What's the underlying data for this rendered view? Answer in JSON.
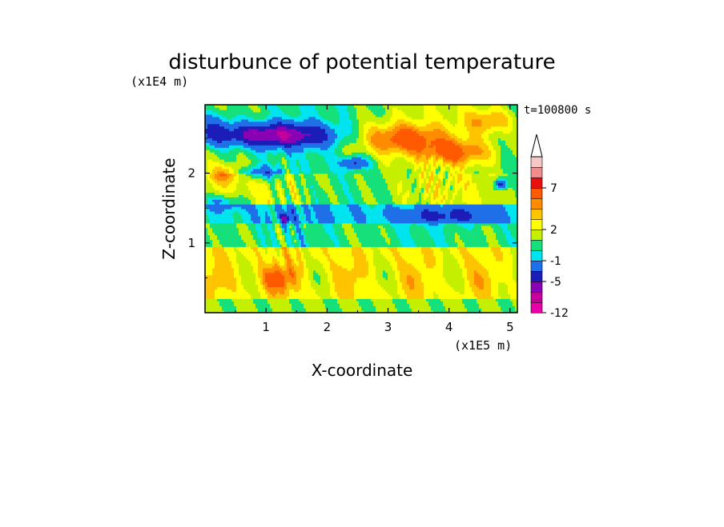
{
  "chart_data": {
    "type": "heatmap",
    "title": "disturbunce of potential temperature",
    "y_scale_label": "(x1E4 m)",
    "x_scale_label": "(x1E5 m)",
    "xlabel": "X-coordinate",
    "ylabel": "Z-coordinate",
    "time_label": "t=100800 s",
    "x_ticks": [
      "1",
      "2",
      "3",
      "4",
      "5"
    ],
    "x_tick_values": [
      1,
      2,
      3,
      4,
      5
    ],
    "y_ticks": [
      "1",
      "2"
    ],
    "y_tick_values": [
      1,
      2
    ],
    "xlim": [
      0,
      5.12
    ],
    "ylim": [
      0,
      2.98
    ],
    "colorbar": {
      "levels": [
        -12,
        -9,
        -7,
        -5,
        -3,
        -1,
        0,
        1,
        2,
        3,
        4,
        5,
        7,
        9,
        11
      ],
      "colors": [
        "#e800a8",
        "#c4009a",
        "#8a00b4",
        "#1c1cb8",
        "#1f6fe8",
        "#00e4f0",
        "#16e07a",
        "#c4f000",
        "#ffff00",
        "#ffc400",
        "#ff8c00",
        "#ff5a00",
        "#e81010",
        "#f08c8c",
        "#f5c8c8"
      ],
      "labels": [
        "-12",
        "-5",
        "-1",
        "2",
        "7"
      ],
      "label_values": [
        -12,
        -5,
        -1,
        2,
        7
      ],
      "extend": "max"
    },
    "features": [
      {
        "x": 1.1,
        "z": 2.55,
        "v": -6
      },
      {
        "x": 0.55,
        "z": 2.55,
        "v": -4
      },
      {
        "x": 2.5,
        "z": 2.15,
        "v": -4
      },
      {
        "x": 3.1,
        "z": 2.5,
        "v": 5
      },
      {
        "x": 3.9,
        "z": 2.35,
        "v": 4
      },
      {
        "x": 4.6,
        "z": 2.7,
        "v": 4
      },
      {
        "x": 0.3,
        "z": 2.0,
        "v": 3
      },
      {
        "x": 1.3,
        "z": 1.35,
        "v": -3
      },
      {
        "x": 4.8,
        "z": 1.85,
        "v": -3
      },
      {
        "x": 1.2,
        "z": 0.5,
        "v": 4
      },
      {
        "x": 2.3,
        "z": 0.55,
        "v": 3
      },
      {
        "x": 4.5,
        "z": 0.55,
        "v": 3
      }
    ]
  }
}
